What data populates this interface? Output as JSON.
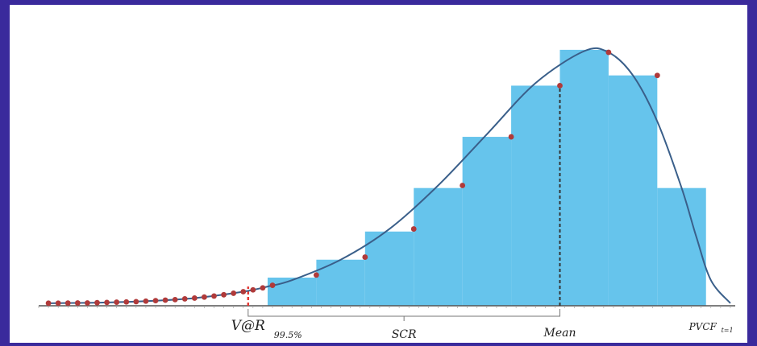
{
  "chart_data": {
    "type": "bar",
    "title": "",
    "xlabel": "",
    "ylabel": "",
    "grid": false,
    "legend": "none",
    "colors": {
      "bars": "#66c4ec",
      "curve": "#3a5f8a",
      "points": "#b03a3a",
      "var_marker": "#e53935",
      "mean_marker": "#333333",
      "axis": "#555555"
    },
    "histogram": {
      "bin_edges": [
        3.5,
        4.5,
        5.5,
        6.5,
        7.5,
        8.5,
        9.5,
        10.5,
        11.5,
        12.5
      ],
      "values": [
        0.11,
        0.18,
        0.29,
        0.46,
        0.66,
        0.86,
        1.0,
        0.9,
        0.46
      ]
    },
    "density_curve": {
      "x": [
        -1,
        0,
        1,
        2,
        3,
        3.5,
        4,
        5,
        6,
        7,
        8,
        9,
        10,
        10.5,
        11,
        11.5,
        12,
        12.3,
        12.6,
        13
      ],
      "y": [
        0.01,
        0.012,
        0.018,
        0.03,
        0.055,
        0.075,
        0.1,
        0.18,
        0.3,
        0.47,
        0.67,
        0.87,
        0.995,
        0.99,
        0.9,
        0.72,
        0.46,
        0.27,
        0.1,
        0.01
      ]
    },
    "points": {
      "x": [
        -1,
        -0.8,
        -0.6,
        -0.4,
        -0.2,
        0,
        0.2,
        0.4,
        0.6,
        0.8,
        1,
        1.2,
        1.4,
        1.6,
        1.8,
        2,
        2.2,
        2.4,
        2.6,
        2.8,
        3,
        3.2,
        3.4,
        3.6,
        4.5,
        5.5,
        6.5,
        7.5,
        8.5,
        9.5,
        10.5,
        11.5
      ],
      "y": [
        0.01,
        0.0102,
        0.0105,
        0.0108,
        0.011,
        0.012,
        0.013,
        0.014,
        0.015,
        0.016,
        0.018,
        0.02,
        0.022,
        0.024,
        0.027,
        0.03,
        0.034,
        0.038,
        0.043,
        0.049,
        0.055,
        0.062,
        0.07,
        0.08,
        0.12,
        0.19,
        0.3,
        0.47,
        0.66,
        0.86,
        0.99,
        0.9
      ]
    },
    "markers": [
      {
        "name": "var",
        "x": 3.1,
        "label": "V@R",
        "sublabel": "99.5%",
        "style": "dashed-red"
      },
      {
        "name": "mean",
        "x": 9.5,
        "label": "Mean",
        "style": "dashed-dark"
      }
    ],
    "brackets": [
      {
        "from": 3.1,
        "to": 9.5,
        "label": "SCR"
      }
    ],
    "axis_end_label": {
      "main": "PVCF",
      "sub": "t=1"
    },
    "xlim": [
      -1.2,
      13.1
    ],
    "ylim": [
      0,
      1.05
    ]
  }
}
